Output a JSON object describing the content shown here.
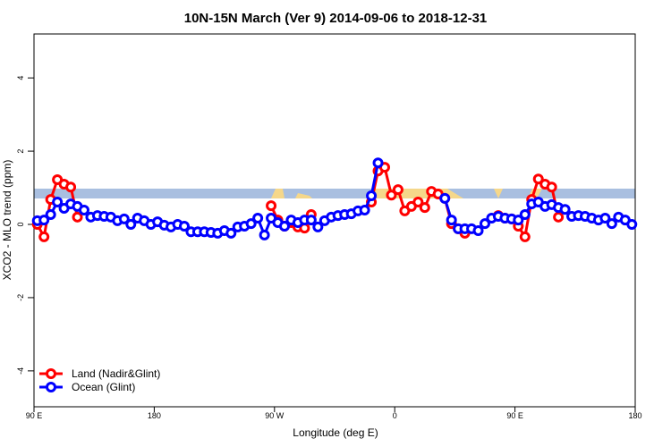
{
  "chart_data": {
    "type": "line",
    "title": "10N-15N March (Ver 9)   2014-09-06 to 2018-12-31",
    "x_label": "Longitude (deg E)",
    "y_label": "XCO2 - MLO trend (ppm)",
    "x": [
      92.5,
      97.5,
      102.5,
      107.5,
      112.5,
      117.5,
      122.5,
      127.5,
      132.5,
      137.5,
      142.5,
      147.5,
      152.5,
      157.5,
      162.5,
      167.5,
      172.5,
      177.5,
      182.5,
      187.5,
      192.5,
      197.5,
      202.5,
      207.5,
      212.5,
      217.5,
      222.5,
      227.5,
      232.5,
      237.5,
      242.5,
      247.5,
      252.5,
      257.5,
      262.5,
      267.5,
      272.5,
      277.5,
      282.5,
      287.5,
      292.5,
      297.5,
      302.5,
      307.5,
      312.5,
      317.5,
      322.5,
      327.5,
      332.5,
      337.5,
      342.5,
      347.5,
      352.5,
      357.5,
      362.5,
      367.5,
      372.5,
      377.5,
      382.5,
      387.5,
      392.5,
      397.5,
      402.5,
      407.5,
      412.5,
      417.5,
      422.5,
      427.5,
      432.5,
      437.5,
      442.5,
      447.5,
      452.5,
      457.5,
      462.5,
      467.5,
      472.5,
      477.5,
      482.5,
      487.5,
      492.5,
      497.5,
      502.5,
      507.5,
      512.5,
      517.5,
      522.5,
      527.5,
      532.5,
      537.5
    ],
    "series": [
      {
        "name": "Land (Nadir&Glint)",
        "color": "#ff0000",
        "values": [
          0,
          -0.34,
          0.68,
          1.22,
          1.1,
          1.02,
          0.2,
          null,
          null,
          null,
          null,
          null,
          null,
          null,
          null,
          null,
          null,
          null,
          null,
          null,
          null,
          null,
          null,
          null,
          null,
          null,
          null,
          null,
          null,
          null,
          null,
          null,
          null,
          null,
          null,
          0.51,
          0.12,
          -0.05,
          0.05,
          -0.07,
          -0.1,
          0.27,
          null,
          null,
          null,
          null,
          null,
          null,
          null,
          null,
          0.61,
          1.46,
          1.56,
          0.8,
          0.95,
          0.37,
          0.49,
          0.61,
          0.46,
          0.9,
          0.83,
          0.71,
          0.02,
          -0.12,
          -0.24,
          null,
          null,
          null,
          null,
          0.24,
          0.17,
          0.15,
          -0.05,
          -0.34,
          0.68,
          1.24,
          1.1,
          1.02,
          0.2,
          null,
          null,
          null,
          null,
          null,
          null,
          null,
          null,
          null,
          null,
          null
        ]
      },
      {
        "name": "Ocean (Glint)",
        "color": "#0000ff",
        "values": [
          0.1,
          0.12,
          0.27,
          0.61,
          0.44,
          0.56,
          0.49,
          0.39,
          0.2,
          0.24,
          0.22,
          0.2,
          0.1,
          0.15,
          0,
          0.17,
          0.1,
          0,
          0.07,
          -0.02,
          -0.07,
          0,
          -0.05,
          -0.2,
          -0.2,
          -0.2,
          -0.22,
          -0.24,
          -0.17,
          -0.24,
          -0.07,
          -0.05,
          0.02,
          0.17,
          -0.29,
          0.17,
          0.05,
          -0.05,
          0.12,
          0.05,
          0.12,
          0.12,
          -0.07,
          0.1,
          0.2,
          0.24,
          0.27,
          0.29,
          0.37,
          0.39,
          0.78,
          1.68,
          null,
          null,
          null,
          null,
          null,
          null,
          null,
          null,
          null,
          0.71,
          0.12,
          -0.12,
          -0.12,
          -0.12,
          -0.17,
          0.02,
          0.17,
          0.22,
          0.17,
          0.15,
          0.12,
          0.27,
          0.56,
          0.61,
          0.49,
          0.54,
          0.46,
          0.41,
          0.22,
          0.24,
          0.22,
          0.17,
          0.12,
          0.17,
          0.02,
          0.2,
          0.12,
          0
        ]
      }
    ],
    "xlim": [
      90,
      540
    ],
    "xticks": [
      {
        "value": 90,
        "label": "90 E"
      },
      180,
      {
        "value": 270,
        "label": "90 W"
      },
      {
        "value": 360,
        "label": "0"
      },
      {
        "value": 450,
        "label": "90 E"
      },
      {
        "value": 540,
        "label": "180"
      }
    ],
    "ylim": [
      -4.98,
      5.2
    ],
    "yticks": [
      -4,
      -2,
      0,
      2,
      4
    ],
    "legend": "bottom-left"
  }
}
